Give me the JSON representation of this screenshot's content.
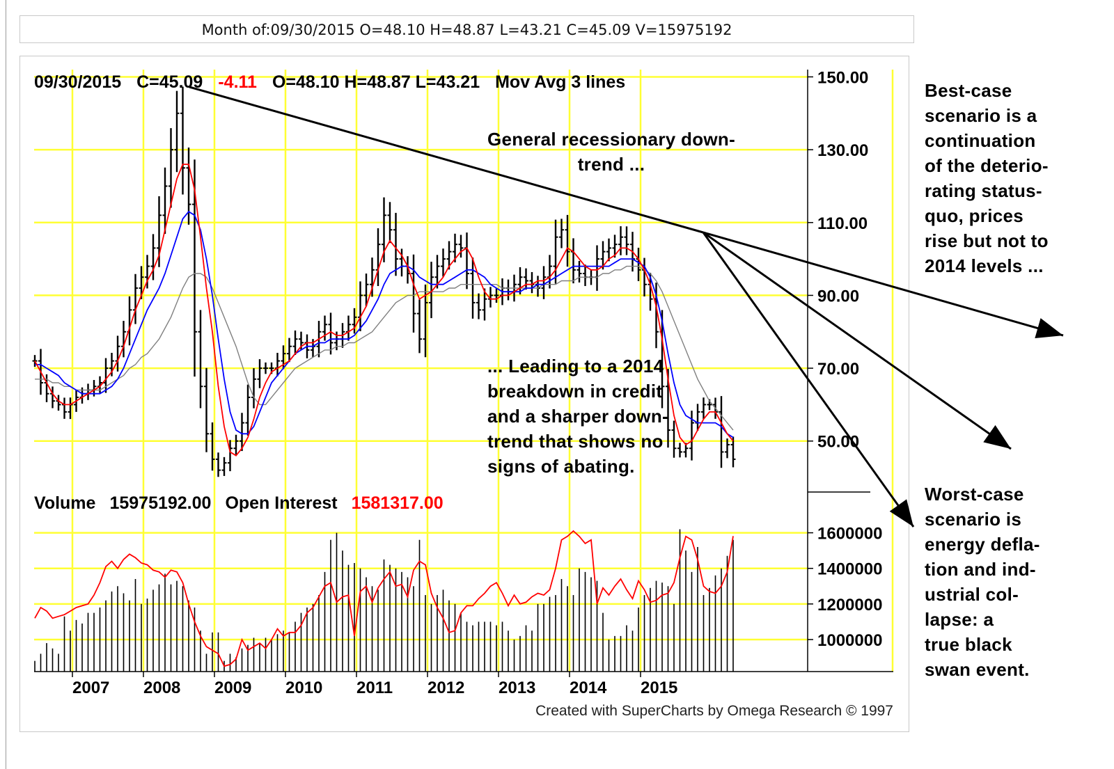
{
  "header": {
    "text": "Month of:09/30/2015 O=48.10 H=48.87 L=43.21 C=45.09 V=15975192"
  },
  "price_panel": {
    "info_date": "09/30/2015",
    "info_close": "C=45.09",
    "info_change": "-4.11",
    "info_ohl": "O=48.10   H=48.87   L=43.21",
    "info_ma": "Mov Avg 3 lines"
  },
  "volume_panel": {
    "label": "Volume",
    "volume_value": "15975192.00",
    "oi_label": "Open Interest",
    "oi_value": "1581317.00"
  },
  "credit": "Created with SuperCharts by Omega Research © 1997",
  "annotations": {
    "general_downtrend": "General recessionary down-\ntrend ...",
    "leading": "... Leading to a 2014\nbreakdown in credit\nand a sharper down-\ntrend that shows no\nsigns of abating.",
    "best_case": "Best-case\nscenario is a\ncontinuation\nof the deterio-\nrating status-\nquo, prices\nrise but not to\n2014 levels ...",
    "worst_case": "Worst-case\nscenario is\nenergy defla-\ntion and ind-\nustrial col-\nlapse: a\ntrue black\nswan event."
  },
  "colors": {
    "grid": "#ffff33",
    "price_bars": "#000000",
    "ma_fast": "#ff0000",
    "ma_mid": "#0000ff",
    "ma_slow": "#808080",
    "open_interest": "#ff0000",
    "change_negative": "#ff0000"
  },
  "chart_data": {
    "type": "ohlc",
    "frequency": "monthly",
    "x_tick_labels": [
      "2007",
      "2008",
      "2009",
      "2010",
      "2011",
      "2012",
      "2013",
      "2014",
      "2015"
    ],
    "price_ticks": [
      "150.00",
      "130.00",
      "110.00",
      "90.00",
      "70.00",
      "50.00"
    ],
    "price_ylim": [
      36,
      152
    ],
    "volume_ticks": [
      "1600000",
      "1400000",
      "1200000",
      "1000000"
    ],
    "volume_ylim": [
      820000,
      1700000
    ],
    "start": "2006-07",
    "close": [
      72,
      66,
      63,
      61,
      60,
      58,
      60,
      62,
      63,
      64,
      65,
      66,
      70,
      72,
      76,
      80,
      86,
      92,
      95,
      98,
      103,
      112,
      120,
      130,
      140,
      125,
      115,
      80,
      65,
      52,
      45,
      42,
      44,
      48,
      50,
      55,
      62,
      67,
      70,
      70,
      70,
      72,
      74,
      76,
      78,
      77,
      75,
      76,
      80,
      82,
      77,
      78,
      80,
      82,
      84,
      90,
      93,
      97,
      104,
      112,
      108,
      100,
      98,
      96,
      85,
      78,
      88,
      95,
      98,
      100,
      102,
      104,
      103,
      96,
      88,
      86,
      89,
      90,
      90,
      92,
      91,
      93,
      95,
      94,
      93,
      92,
      95,
      98,
      106,
      108,
      102,
      97,
      96,
      95,
      95,
      100,
      102,
      103,
      104,
      106,
      104,
      100,
      97,
      93,
      89,
      80,
      65,
      53,
      48,
      47,
      48,
      55,
      58,
      60,
      60,
      58,
      47,
      49,
      45
    ],
    "ma_fast": [
      72,
      69,
      66,
      63,
      61,
      60,
      60,
      61,
      62,
      63,
      64,
      65,
      67,
      69,
      72,
      76,
      81,
      86,
      90,
      94,
      97,
      101,
      108,
      115,
      122,
      126,
      126,
      119,
      106,
      92,
      80,
      65,
      54,
      47,
      46,
      48,
      51,
      56,
      62,
      66,
      69,
      70,
      71,
      72,
      74,
      76,
      77,
      77,
      78,
      79,
      80,
      79,
      79,
      80,
      81,
      84,
      87,
      92,
      97,
      102,
      105,
      103,
      101,
      98,
      93,
      89,
      90,
      91,
      93,
      95,
      98,
      100,
      102,
      103,
      100,
      95,
      91,
      89,
      89,
      90,
      90,
      91,
      92,
      93,
      93,
      94,
      94,
      95,
      97,
      100,
      103,
      102,
      100,
      98,
      97,
      97,
      98,
      100,
      101,
      103,
      103,
      102,
      100,
      97,
      93,
      87,
      78,
      67,
      57,
      51,
      49,
      50,
      53,
      56,
      58,
      58,
      55,
      52,
      50
    ],
    "ma_mid": [
      71,
      71,
      70,
      69,
      68,
      66,
      65,
      64,
      63,
      63,
      63,
      63,
      64,
      65,
      67,
      70,
      74,
      78,
      82,
      86,
      89,
      92,
      96,
      101,
      106,
      111,
      113,
      112,
      108,
      100,
      90,
      78,
      67,
      58,
      53,
      52,
      52,
      54,
      58,
      62,
      66,
      68,
      70,
      72,
      74,
      75,
      76,
      76,
      77,
      77,
      78,
      78,
      78,
      78,
      79,
      81,
      83,
      86,
      89,
      93,
      96,
      97,
      98,
      98,
      97,
      95,
      94,
      93,
      93,
      93,
      94,
      95,
      96,
      97,
      97,
      96,
      95,
      93,
      92,
      91,
      91,
      91,
      91,
      92,
      92,
      93,
      93,
      94,
      95,
      96,
      97,
      98,
      98,
      98,
      98,
      98,
      98,
      98,
      99,
      100,
      100,
      100,
      99,
      98,
      95,
      90,
      83,
      74,
      66,
      60,
      57,
      56,
      55,
      55,
      55,
      55,
      54,
      52,
      51
    ],
    "ma_slow": [
      67,
      67,
      67,
      66,
      66,
      65,
      65,
      64,
      64,
      64,
      64,
      64,
      65,
      66,
      67,
      68,
      70,
      71,
      73,
      74,
      76,
      78,
      81,
      84,
      88,
      92,
      95,
      96,
      96,
      95,
      92,
      88,
      84,
      80,
      76,
      71,
      66,
      62,
      60,
      60,
      62,
      64,
      66,
      68,
      70,
      71,
      72,
      73,
      74,
      75,
      75,
      76,
      76,
      77,
      77,
      78,
      79,
      80,
      82,
      84,
      86,
      88,
      89,
      90,
      90,
      91,
      91,
      91,
      91,
      91,
      92,
      92,
      93,
      93,
      93,
      93,
      93,
      93,
      93,
      92,
      92,
      92,
      92,
      92,
      92,
      92,
      93,
      93,
      93,
      94,
      94,
      94,
      95,
      95,
      95,
      95,
      96,
      96,
      97,
      97,
      98,
      98,
      98,
      97,
      96,
      94,
      91,
      87,
      83,
      79,
      75,
      71,
      67,
      64,
      61,
      59,
      57,
      55,
      53
    ],
    "volume": [
      880000,
      920000,
      980000,
      950000,
      920000,
      1130000,
      1050000,
      1110000,
      1090000,
      1150000,
      1150000,
      1180000,
      1220000,
      1270000,
      1300000,
      1260000,
      1220000,
      1340000,
      1200000,
      1230000,
      1280000,
      1310000,
      1370000,
      1310000,
      1330000,
      1300000,
      1220000,
      1180000,
      1050000,
      920000,
      1040000,
      1040000,
      880000,
      920000,
      900000,
      950000,
      970000,
      1010000,
      980000,
      1010000,
      1000000,
      1030000,
      1050000,
      1040000,
      1100000,
      1150000,
      1180000,
      1200000,
      1250000,
      1380000,
      1560000,
      1600000,
      1500000,
      1420000,
      1430000,
      1400000,
      1350000,
      1300000,
      1280000,
      1450000,
      1420000,
      1400000,
      1380000,
      1350000,
      1300000,
      1560000,
      1250000,
      1200000,
      1250000,
      1280000,
      1220000,
      1200000,
      1150000,
      1100000,
      1080000,
      1100000,
      1100000,
      1100000,
      1080000,
      1100000,
      1050000,
      1000000,
      1020000,
      1080000,
      1050000,
      1200000,
      1200000,
      1240000,
      1250000,
      1340000,
      1300000,
      1250000,
      1400000,
      1380000,
      1350000,
      1330000,
      1150000,
      1000000,
      1020000,
      1020000,
      1080000,
      1050000,
      1180000,
      1250000,
      1290000,
      1330000,
      1320000,
      1300000,
      1200000,
      1620000,
      1500000,
      1380000,
      1520000,
      1250000,
      1290000,
      1360000,
      1400000,
      1470000,
      1560000
    ],
    "open_interest": [
      1120000,
      1180000,
      1160000,
      1120000,
      1130000,
      1140000,
      1160000,
      1180000,
      1190000,
      1200000,
      1250000,
      1320000,
      1410000,
      1440000,
      1400000,
      1450000,
      1480000,
      1460000,
      1430000,
      1420000,
      1390000,
      1380000,
      1350000,
      1390000,
      1380000,
      1320000,
      1200000,
      1100000,
      1020000,
      960000,
      940000,
      920000,
      850000,
      860000,
      890000,
      1000000,
      940000,
      960000,
      980000,
      950000,
      1000000,
      1060000,
      1020000,
      1040000,
      1040000,
      1080000,
      1150000,
      1180000,
      1240000,
      1300000,
      1320000,
      1210000,
      1240000,
      1250000,
      1020000,
      1270000,
      1300000,
      1210000,
      1290000,
      1340000,
      1380000,
      1300000,
      1310000,
      1240000,
      1390000,
      1440000,
      1420000,
      1260000,
      1180000,
      1120000,
      1040000,
      1050000,
      1150000,
      1190000,
      1190000,
      1230000,
      1260000,
      1300000,
      1320000,
      1260000,
      1190000,
      1250000,
      1200000,
      1210000,
      1240000,
      1260000,
      1250000,
      1280000,
      1400000,
      1560000,
      1580000,
      1610000,
      1580000,
      1540000,
      1560000,
      1200000,
      1290000,
      1250000,
      1300000,
      1340000,
      1280000,
      1230000,
      1330000,
      1280000,
      1210000,
      1220000,
      1250000,
      1260000,
      1320000,
      1460000,
      1580000,
      1560000,
      1450000,
      1300000,
      1270000,
      1260000,
      1300000,
      1380000,
      1581317
    ]
  }
}
